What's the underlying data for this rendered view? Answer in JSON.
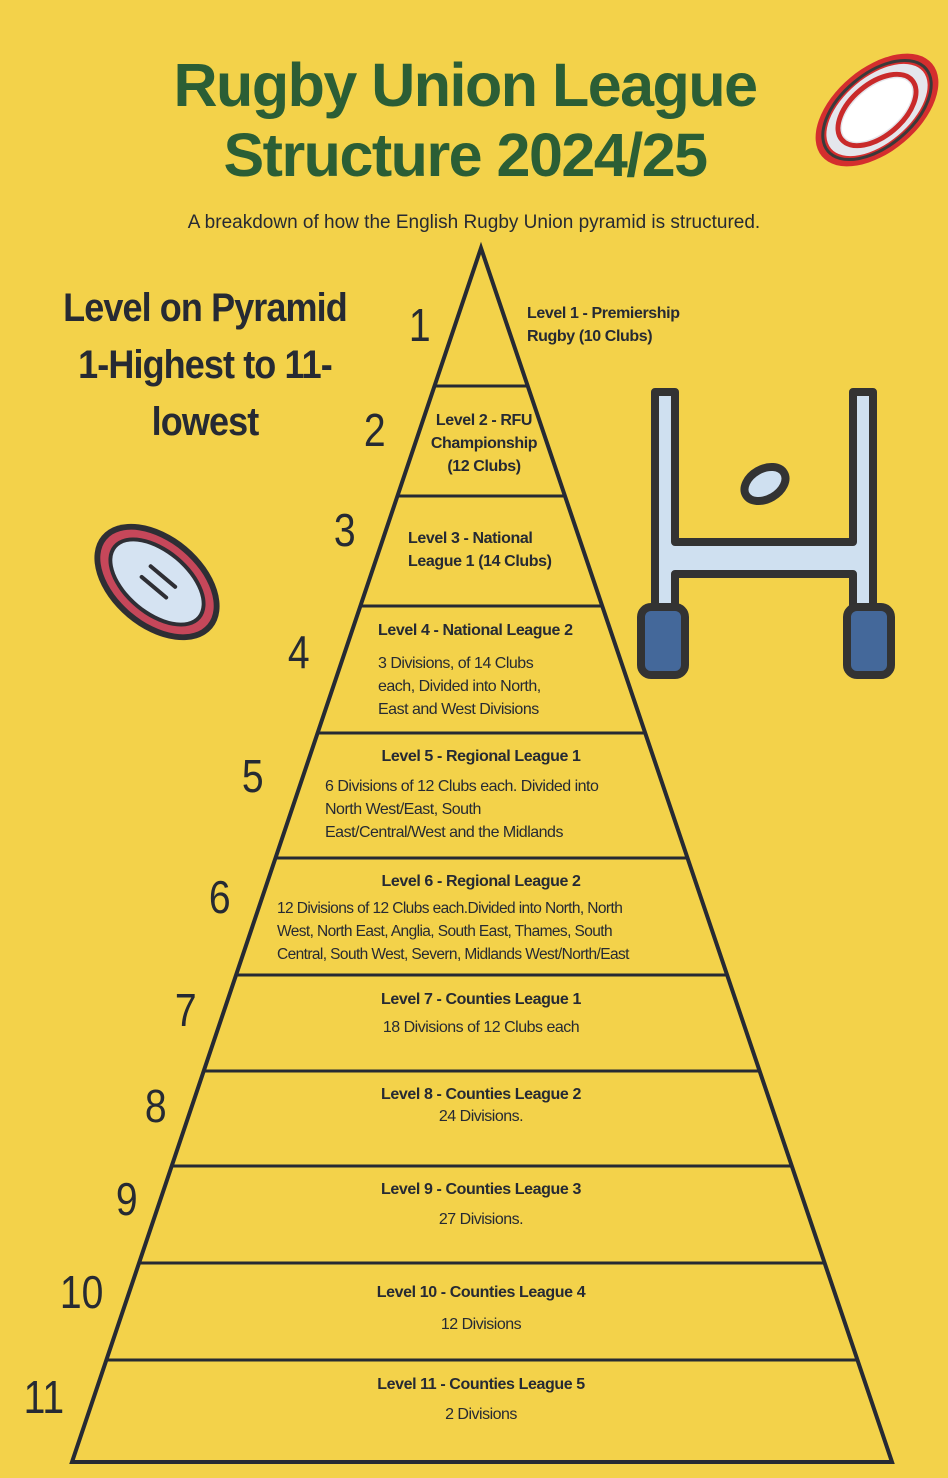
{
  "title": [
    "Rugby Union League",
    "Structure 2024/25"
  ],
  "subtitle": "A breakdown of how the English  Rugby Union pyramid  is structured.",
  "side_heading": [
    "Level on Pyramid",
    "1-Highest to 11-",
    "lowest"
  ],
  "colors": {
    "background": "#F3D24A",
    "title": "#2B5E35",
    "ink": "#262A33"
  },
  "icons": [
    "rugby-ball-icon",
    "rugby-ball-icon",
    "rugby-goalposts-icon"
  ],
  "levels": [
    {
      "number": "1",
      "title": "Level 1 - Premiership Rugby (10 Clubs)",
      "title_lines": [
        "Level 1 - Premiership",
        "Rugby (10 Clubs)"
      ],
      "body": ""
    },
    {
      "number": "2",
      "title_lines": [
        "Level 2 - RFU",
        "Championship",
        "(12 Clubs)"
      ],
      "body": ""
    },
    {
      "number": "3",
      "title_lines": [
        "Level 3 - National",
        "League 1 (14 Clubs)"
      ],
      "body": ""
    },
    {
      "number": "4",
      "title_lines": [
        "Level 4 - National League 2"
      ],
      "body_lines": [
        "3 Divisions, of 14 Clubs",
        "each, Divided into North,",
        "East and West Divisions"
      ]
    },
    {
      "number": "5",
      "title_lines": [
        "Level 5 - Regional League 1"
      ],
      "body_lines": [
        "6 Divisions of 12 Clubs each. Divided into",
        "North West/East, South",
        "East/Central/West and the Midlands"
      ]
    },
    {
      "number": "6",
      "title_lines": [
        "Level 6 - Regional League 2"
      ],
      "body_lines": [
        "12 Divisions of 12 Clubs each.Divided into North, North",
        "West, North East, Anglia, South East, Thames, South",
        "Central, South West, Severn, Midlands West/North/East"
      ]
    },
    {
      "number": "7",
      "title_lines": [
        "Level 7 - Counties League 1"
      ],
      "body_lines": [
        "18 Divisions of 12 Clubs each"
      ]
    },
    {
      "number": "8",
      "title_lines": [
        "Level 8 - Counties League 2"
      ],
      "body_lines": [
        "24 Divisions."
      ]
    },
    {
      "number": "9",
      "title_lines": [
        "Level 9 - Counties League 3"
      ],
      "body_lines": [
        "27 Divisions."
      ]
    },
    {
      "number": "10",
      "title_lines": [
        "Level 10 - Counties League 4"
      ],
      "body_lines": [
        "12 Divisions"
      ]
    },
    {
      "number": "11",
      "title_lines": [
        "Level 11 - Counties League 5"
      ],
      "body_lines": [
        "2 Divisions"
      ]
    }
  ]
}
